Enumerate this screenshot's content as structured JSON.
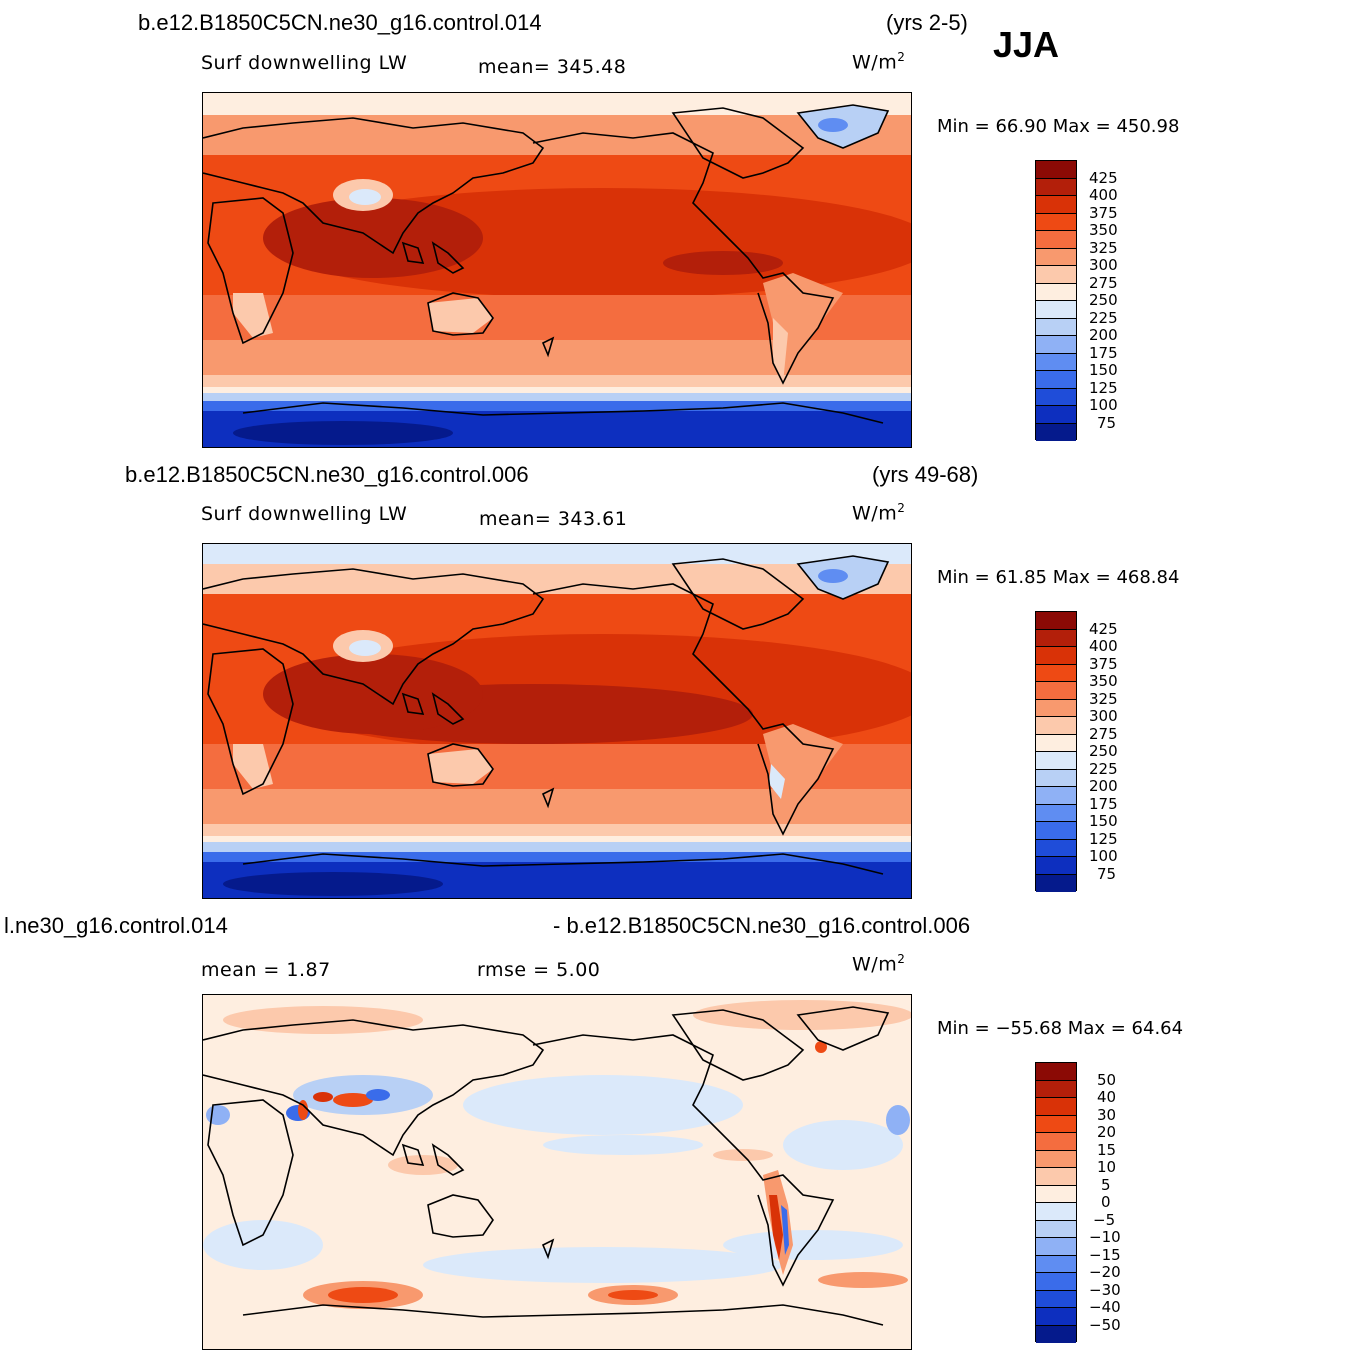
{
  "season": "JJA",
  "panels": [
    {
      "case": "b.e12.B1850C5CN.ne30_g16.control.014",
      "years": "(yrs 2-5)",
      "variable": "Surf downwelling LW",
      "mean_label": "mean= 345.48",
      "units": "W/m",
      "units_exp": "2",
      "minmax": "Min =   66.90  Max  =  450.98",
      "levels": [
        "425",
        "400",
        "375",
        "350",
        "325",
        "300",
        "275",
        "250",
        "225",
        "200",
        "175",
        "150",
        "125",
        "100",
        "75"
      ]
    },
    {
      "case": "b.e12.B1850C5CN.ne30_g16.control.006",
      "years": "(yrs 49-68)",
      "variable": "Surf downwelling LW",
      "mean_label": "mean= 343.61",
      "units": "W/m",
      "units_exp": "2",
      "minmax": "Min =   61.85  Max  =  468.84",
      "levels": [
        "425",
        "400",
        "375",
        "350",
        "325",
        "300",
        "275",
        "250",
        "225",
        "200",
        "175",
        "150",
        "125",
        "100",
        "75"
      ]
    },
    {
      "case": "l.ne30_g16.control.014",
      "years": "- b.e12.B1850C5CN.ne30_g16.control.006",
      "mean_label": "mean =     1.87",
      "rmse_label": "rmse =     5.00",
      "units": "W/m",
      "units_exp": "2",
      "minmax": "Min =  −55.68  Max  =    64.64",
      "levels": [
        "50",
        "40",
        "30",
        "20",
        "15",
        "10",
        "5",
        "0",
        "−5",
        "−10",
        "−15",
        "−20",
        "−30",
        "−40",
        "−50"
      ]
    }
  ],
  "colors": {
    "abs_scale": [
      "#8b0a05",
      "#b31f0a",
      "#d93207",
      "#ee4a14",
      "#f46d3f",
      "#f8996e",
      "#fcc9ac",
      "#feeee0",
      "#dbe9fa",
      "#b8d0f5",
      "#8fb1f5",
      "#5f8df2",
      "#3a6cea",
      "#1f4dd9",
      "#0d2fbf",
      "#051a8c"
    ],
    "diff_scale": [
      "#8b0a05",
      "#b31f0a",
      "#d93207",
      "#ee4a14",
      "#f46d3f",
      "#f8996e",
      "#fcc9ac",
      "#feeee0",
      "#dbe9fa",
      "#b8d0f5",
      "#8fb1f5",
      "#5f8df2",
      "#3a6cea",
      "#1f4dd9",
      "#0d2fbf",
      "#051a8c"
    ]
  }
}
